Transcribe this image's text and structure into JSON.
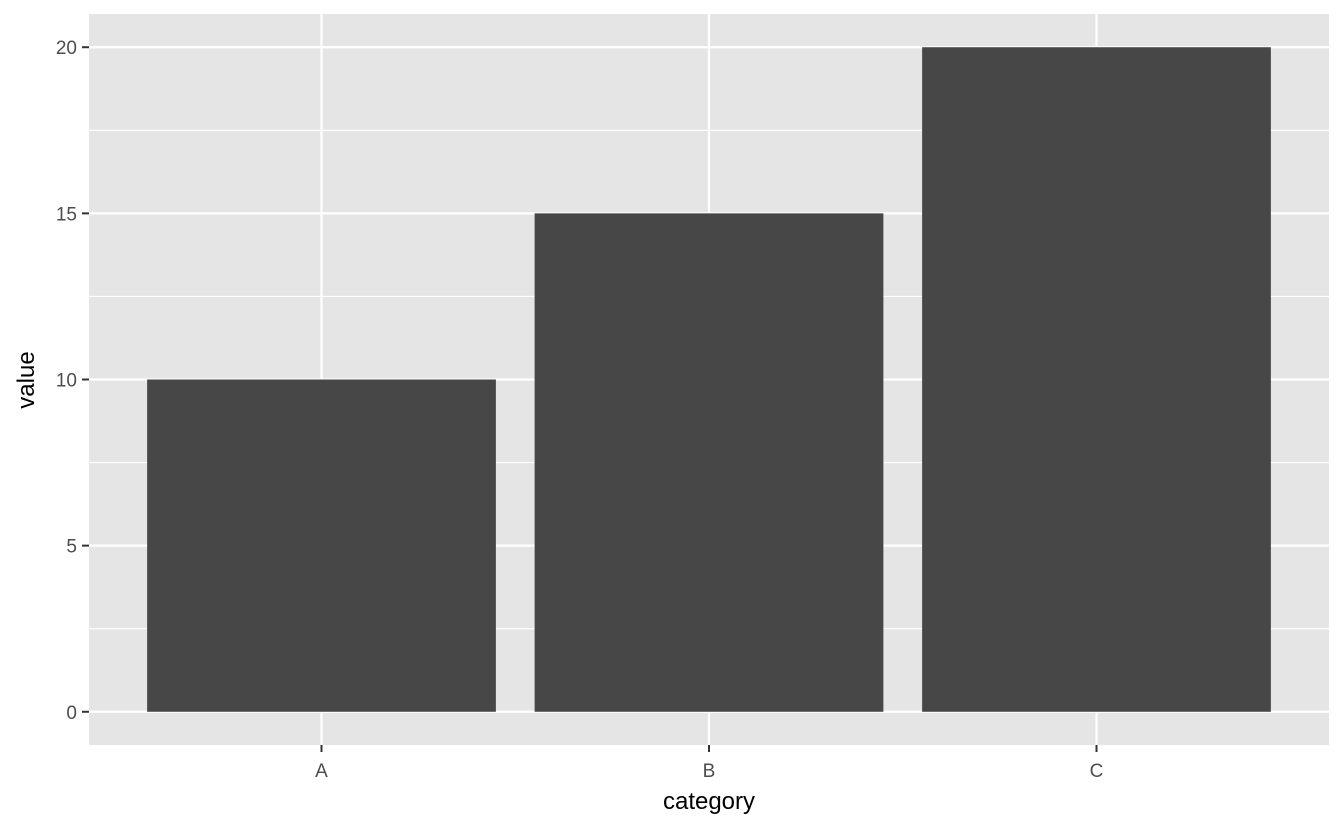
{
  "chart_data": {
    "type": "bar",
    "categories": [
      "A",
      "B",
      "C"
    ],
    "values": [
      10,
      15,
      20
    ],
    "title": "",
    "xlabel": "category",
    "ylabel": "value",
    "ylim": [
      -1,
      21
    ],
    "yticks": [
      0,
      5,
      10,
      15,
      20
    ],
    "grid": true,
    "colors": {
      "bar": "#474747",
      "panel": "#e5e5e5",
      "grid": "#ffffff",
      "tick_label": "#4d4d4d",
      "axis_title": "#000000"
    }
  }
}
